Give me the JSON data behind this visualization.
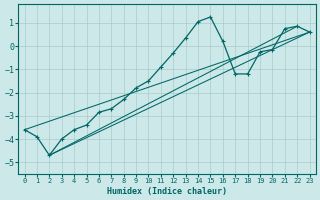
{
  "xlabel": "Humidex (Indice chaleur)",
  "bg_color": "#cce8e8",
  "grid_color": "#aacccc",
  "line_color": "#006666",
  "xlim": [
    -0.5,
    23.5
  ],
  "ylim": [
    -5.5,
    1.8
  ],
  "yticks": [
    1,
    0,
    -1,
    -2,
    -3,
    -4,
    -5
  ],
  "xticks": [
    0,
    1,
    2,
    3,
    4,
    5,
    6,
    7,
    8,
    9,
    10,
    11,
    12,
    13,
    14,
    15,
    16,
    17,
    18,
    19,
    20,
    21,
    22,
    23
  ],
  "curve_x": [
    0,
    1,
    2,
    3,
    4,
    5,
    6,
    7,
    8,
    9,
    10,
    11,
    12,
    13,
    14,
    15,
    16,
    17,
    18,
    19,
    20,
    21,
    22,
    23
  ],
  "curve_y": [
    -3.6,
    -3.9,
    -4.7,
    -4.0,
    -3.6,
    -3.4,
    -2.85,
    -2.7,
    -2.3,
    -1.8,
    -1.5,
    -0.9,
    -0.3,
    0.35,
    1.05,
    1.25,
    0.2,
    -1.2,
    -1.2,
    -0.25,
    -0.15,
    0.75,
    0.85,
    0.6
  ],
  "line1_x": [
    0,
    23
  ],
  "line1_y": [
    -3.6,
    0.6
  ],
  "line2_x": [
    2,
    22
  ],
  "line2_y": [
    -4.7,
    0.85
  ],
  "line3_x": [
    2,
    23
  ],
  "line3_y": [
    -4.7,
    0.6
  ]
}
